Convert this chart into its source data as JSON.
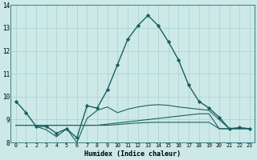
{
  "xlabel": "Humidex (Indice chaleur)",
  "bg_color": "#cce9e8",
  "line_color": "#1a6060",
  "grid_color": "#aed4d3",
  "xlim": [
    -0.5,
    23.5
  ],
  "ylim": [
    8,
    14
  ],
  "yticks": [
    8,
    9,
    10,
    11,
    12,
    13,
    14
  ],
  "xticks": [
    0,
    1,
    2,
    3,
    4,
    5,
    6,
    7,
    8,
    9,
    10,
    11,
    12,
    13,
    14,
    15,
    16,
    17,
    18,
    19,
    20,
    21,
    22,
    23
  ],
  "series": [
    {
      "x": [
        0,
        1,
        2,
        3,
        4,
        5,
        6,
        7,
        8,
        9,
        10,
        11,
        12,
        13,
        14,
        15,
        16,
        17,
        18,
        19,
        20,
        21,
        22,
        23
      ],
      "y": [
        9.8,
        9.3,
        8.7,
        8.7,
        8.4,
        8.6,
        8.2,
        9.6,
        9.5,
        10.3,
        11.4,
        12.5,
        13.1,
        13.55,
        13.1,
        12.4,
        11.6,
        10.5,
        9.8,
        9.5,
        9.1,
        8.6,
        8.65,
        8.6
      ],
      "marker": "D",
      "markersize": 2.2,
      "lw": 1.0
    },
    {
      "x": [
        0,
        1,
        2,
        3,
        4,
        5,
        6,
        7,
        8,
        9,
        10,
        11,
        12,
        13,
        14,
        15,
        16,
        17,
        18,
        19,
        20,
        21,
        22,
        23
      ],
      "y": [
        8.75,
        8.75,
        8.75,
        8.75,
        8.75,
        8.75,
        8.75,
        8.75,
        8.75,
        8.8,
        8.85,
        8.9,
        8.95,
        9.0,
        9.05,
        9.1,
        9.15,
        9.2,
        9.25,
        9.25,
        8.6,
        8.6,
        8.6,
        8.6
      ],
      "marker": null,
      "markersize": 0,
      "lw": 0.8
    },
    {
      "x": [
        0,
        1,
        2,
        3,
        4,
        5,
        6,
        7,
        8,
        9,
        10,
        11,
        12,
        13,
        14,
        15,
        16,
        17,
        18,
        19,
        20,
        21,
        22,
        23
      ],
      "y": [
        8.75,
        8.75,
        8.75,
        8.75,
        8.75,
        8.75,
        8.75,
        8.75,
        8.75,
        8.75,
        8.78,
        8.82,
        8.85,
        8.87,
        8.88,
        8.88,
        8.88,
        8.88,
        8.88,
        8.88,
        8.6,
        8.6,
        8.6,
        8.6
      ],
      "marker": null,
      "markersize": 0,
      "lw": 0.8
    },
    {
      "x": [
        2,
        3,
        4,
        5,
        6,
        7,
        8,
        9,
        10,
        11,
        12,
        13,
        14,
        15,
        16,
        17,
        18,
        19,
        20,
        21,
        22,
        23
      ],
      "y": [
        8.7,
        8.55,
        8.25,
        8.6,
        8.0,
        9.05,
        9.4,
        9.55,
        9.3,
        9.45,
        9.55,
        9.62,
        9.65,
        9.62,
        9.55,
        9.5,
        9.45,
        9.4,
        9.0,
        8.6,
        8.62,
        8.6
      ],
      "marker": null,
      "markersize": 0,
      "lw": 0.8
    }
  ]
}
